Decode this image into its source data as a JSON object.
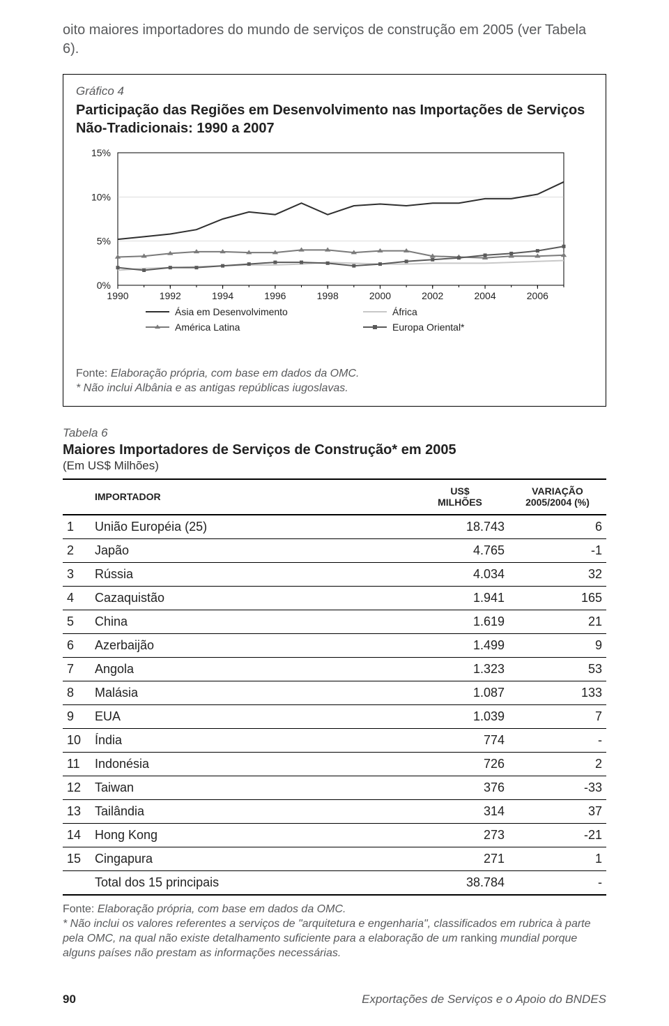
{
  "intro": "oito maiores importadores do mundo de serviços de construção em 2005 (ver Tabela 6).",
  "figure": {
    "label": "Gráfico 4",
    "title": "Participação das Regiões em Desenvolvimento nas Importações de Serviços Não-Tradicionais: 1990 a 2007",
    "fonte_prefix": "Fonte:",
    "fonte_italic": "Elaboração própria, com base em dados da OMC.",
    "note_italic": "* Não inclui Albânia e as antigas repúblicas iugoslavas.",
    "chart": {
      "type": "line",
      "background_color": "#ffffff",
      "plot_border_color": "#000000",
      "grid_color": "#bbbbbb",
      "axis_color": "#000000",
      "xlim": [
        1990,
        2007
      ],
      "ylim": [
        0,
        15
      ],
      "ytick_step": 5,
      "yticks": [
        "0%",
        "5%",
        "10%",
        "15%"
      ],
      "xtick_step": 2,
      "xticks": [
        "1990",
        "1992",
        "1994",
        "1996",
        "1998",
        "2000",
        "2002",
        "2004",
        "2006"
      ],
      "x_values": [
        1990,
        1991,
        1992,
        1993,
        1994,
        1995,
        1996,
        1997,
        1998,
        1999,
        2000,
        2001,
        2002,
        2003,
        2004,
        2005,
        2006,
        2007
      ],
      "series": [
        {
          "name": "Ásia em Desenvolvimento",
          "color": "#2f2f2f",
          "line_width": 2,
          "marker": "none",
          "values": [
            5.2,
            5.5,
            5.8,
            6.3,
            7.5,
            8.3,
            8.0,
            9.3,
            8.0,
            9.0,
            9.2,
            9.0,
            9.3,
            9.3,
            9.8,
            9.8,
            10.3,
            11.7
          ]
        },
        {
          "name": "África",
          "color": "#c8c8c8",
          "line_width": 2,
          "marker": "none",
          "values": [
            1.7,
            1.9,
            2.0,
            2.1,
            2.2,
            2.3,
            2.3,
            2.4,
            2.6,
            2.5,
            2.4,
            2.4,
            2.5,
            2.5,
            2.5,
            2.6,
            2.7,
            2.8
          ]
        },
        {
          "name": "América Latina",
          "color": "#7a7a7a",
          "line_width": 2,
          "marker": "triangle",
          "marker_size": 6,
          "values": [
            3.2,
            3.3,
            3.6,
            3.8,
            3.8,
            3.7,
            3.7,
            4.0,
            4.0,
            3.7,
            3.9,
            3.9,
            3.3,
            3.2,
            3.1,
            3.3,
            3.3,
            3.4
          ]
        },
        {
          "name": "Europa Oriental*",
          "color": "#5a5a5a",
          "line_width": 2,
          "marker": "square",
          "marker_size": 5,
          "values": [
            2.0,
            1.7,
            2.0,
            2.0,
            2.2,
            2.4,
            2.6,
            2.6,
            2.5,
            2.2,
            2.4,
            2.7,
            2.9,
            3.1,
            3.4,
            3.6,
            3.9,
            4.4
          ]
        }
      ],
      "legend": {
        "layout": "2x2",
        "items": [
          {
            "series": 0,
            "label": "Ásia em Desenvolvimento"
          },
          {
            "series": 1,
            "label": "África"
          },
          {
            "series": 2,
            "label": "América Latina"
          },
          {
            "series": 3,
            "label": "Europa Oriental*"
          }
        ]
      }
    }
  },
  "table": {
    "label": "Tabela 6",
    "title": "Maiores Importadores de Serviços de Construção* em 2005",
    "sub": "(Em US$ Milhões)",
    "columns": {
      "importer": "IMPORTADOR",
      "usd": "US$\nMILHÕES",
      "var": "VARIAÇÃO\n2005/2004 (%)"
    },
    "rows": [
      {
        "rank": "1",
        "name": "União Européia (25)",
        "usd": "18.743",
        "var": "6"
      },
      {
        "rank": "2",
        "name": "Japão",
        "usd": "4.765",
        "var": "-1"
      },
      {
        "rank": "3",
        "name": "Rússia",
        "usd": "4.034",
        "var": "32"
      },
      {
        "rank": "4",
        "name": "Cazaquistão",
        "usd": "1.941",
        "var": "165"
      },
      {
        "rank": "5",
        "name": "China",
        "usd": "1.619",
        "var": "21"
      },
      {
        "rank": "6",
        "name": "Azerbaijão",
        "usd": "1.499",
        "var": "9"
      },
      {
        "rank": "7",
        "name": "Angola",
        "usd": "1.323",
        "var": "53"
      },
      {
        "rank": "8",
        "name": "Malásia",
        "usd": "1.087",
        "var": "133"
      },
      {
        "rank": "9",
        "name": "EUA",
        "usd": "1.039",
        "var": "7"
      },
      {
        "rank": "10",
        "name": "Índia",
        "usd": "774",
        "var": "-"
      },
      {
        "rank": "11",
        "name": "Indonésia",
        "usd": "726",
        "var": "2"
      },
      {
        "rank": "12",
        "name": "Taiwan",
        "usd": "376",
        "var": "-33"
      },
      {
        "rank": "13",
        "name": "Tailândia",
        "usd": "314",
        "var": "37"
      },
      {
        "rank": "14",
        "name": "Hong Kong",
        "usd": "273",
        "var": "-21"
      },
      {
        "rank": "15",
        "name": "Cingapura",
        "usd": "271",
        "var": "1"
      }
    ],
    "total_row": {
      "rank": "",
      "name": "Total dos 15 principais",
      "usd": "38.784",
      "var": "-"
    },
    "fonte_prefix": "Fonte:",
    "fonte_italic": "Elaboração própria, com base em dados da OMC.",
    "note_italic": "* Não inclui os valores referentes a serviços de \"arquitetura e engenharia\", classificados em rubrica à parte pela OMC, na qual não existe detalhamento suficiente para a elaboração de um",
    "note_after": "ranking",
    "note_tail": "mundial porque alguns países não prestam as informações necessárias."
  },
  "footer": {
    "page": "90",
    "title": "Exportações de Serviços e o Apoio do BNDES"
  }
}
